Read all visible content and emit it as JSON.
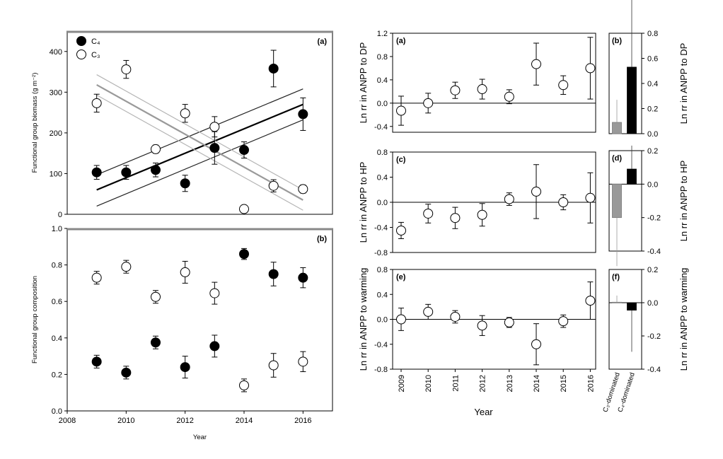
{
  "colors": {
    "filled": "#000000",
    "open": "#ffffff",
    "c3_bar": "#999999",
    "c4_bar": "#000000",
    "regression_c4": "#000000",
    "regression_c3": "#9a9a9a",
    "ci_band": "#444444"
  },
  "chart_data": [
    {
      "id": "left-a",
      "type": "scatter",
      "panel_label": "(a)",
      "ylabel": "Functional group biomass (g m⁻²)",
      "xlim": [
        2008,
        2017
      ],
      "ylim": [
        0,
        450
      ],
      "yticks": [
        "0",
        "100",
        "200",
        "300",
        "400"
      ],
      "legend": {
        "position": "top-left",
        "entries": [
          "C₄",
          "C₃"
        ]
      },
      "series": [
        {
          "name": "C₄",
          "marker": "filled",
          "x": [
            2009,
            2010,
            2011,
            2012,
            2013,
            2014,
            2015,
            2016
          ],
          "y": [
            103,
            103,
            109,
            76,
            163,
            158,
            358,
            246
          ],
          "err": [
            17,
            17,
            17,
            20,
            40,
            20,
            45,
            40
          ]
        },
        {
          "name": "C₃",
          "marker": "open",
          "x": [
            2009,
            2010,
            2011,
            2012,
            2013,
            2014,
            2015,
            2016
          ],
          "y": [
            273,
            356,
            160,
            248,
            215,
            13,
            70,
            62
          ],
          "err": [
            22,
            22,
            10,
            22,
            25,
            8,
            15,
            10
          ]
        }
      ],
      "regressions": [
        {
          "series": "C₄",
          "x": [
            2009,
            2016
          ],
          "y": [
            60,
            270
          ],
          "lower": [
            20,
            232
          ],
          "upper": [
            97,
            308
          ]
        },
        {
          "series": "C₃",
          "x": [
            2009,
            2016
          ],
          "y": [
            318,
            35
          ],
          "lower": [
            293,
            10
          ],
          "upper": [
            343,
            60
          ]
        }
      ]
    },
    {
      "id": "left-b",
      "type": "scatter",
      "panel_label": "(b)",
      "xlabel": "Year",
      "ylabel": "Functional group composition",
      "xlim": [
        2008,
        2017
      ],
      "ylim": [
        0.0,
        1.0
      ],
      "xticks": [
        "2008",
        "2010",
        "2012",
        "2014",
        "2016"
      ],
      "yticks": [
        "0.0",
        "0.2",
        "0.4",
        "0.6",
        "0.8",
        "1.0"
      ],
      "series": [
        {
          "name": "C₄",
          "marker": "filled",
          "x": [
            2009,
            2010,
            2011,
            2012,
            2013,
            2014,
            2015,
            2016
          ],
          "y": [
            0.27,
            0.21,
            0.375,
            0.24,
            0.355,
            0.86,
            0.75,
            0.73
          ],
          "err": [
            0.035,
            0.035,
            0.035,
            0.06,
            0.06,
            0.03,
            0.065,
            0.055
          ]
        },
        {
          "name": "C₃",
          "marker": "open",
          "x": [
            2009,
            2010,
            2011,
            2012,
            2013,
            2014,
            2015,
            2016
          ],
          "y": [
            0.73,
            0.79,
            0.625,
            0.76,
            0.645,
            0.14,
            0.25,
            0.27
          ],
          "err": [
            0.035,
            0.035,
            0.035,
            0.06,
            0.06,
            0.035,
            0.065,
            0.055
          ]
        }
      ]
    },
    {
      "id": "right-a",
      "type": "scatter",
      "panel_label": "(a)",
      "ylabel": "Ln rr in ANPP to DP",
      "ylim": [
        -0.5,
        1.2
      ],
      "yticks": [
        "-0.4",
        "0.0",
        "0.4",
        "0.8",
        "1.2"
      ],
      "x": [
        2009,
        2010,
        2011,
        2012,
        2013,
        2014,
        2015,
        2016
      ],
      "y": [
        -0.13,
        0.0,
        0.22,
        0.24,
        0.11,
        0.67,
        0.31,
        0.6
      ],
      "err": [
        0.25,
        0.17,
        0.14,
        0.17,
        0.12,
        0.36,
        0.16,
        0.53
      ]
    },
    {
      "id": "right-b",
      "type": "bar",
      "panel_label": "(b)",
      "ylabel": "Ln rr in ANPP to DP",
      "ylim": [
        0.0,
        0.8
      ],
      "yticks": [
        "0.0",
        "0.2",
        "0.4",
        "0.6",
        "0.8"
      ],
      "categories": [
        "C₃-dominated",
        "C₄-dominated"
      ],
      "values": [
        0.09,
        0.53
      ],
      "err": [
        0.18,
        0.63
      ]
    },
    {
      "id": "right-c",
      "type": "scatter",
      "panel_label": "(c)",
      "ylabel": "Ln rr in ANPP to HP",
      "ylim": [
        -0.8,
        0.8
      ],
      "yticks": [
        "-0.8",
        "-0.4",
        "0.0",
        "0.4",
        "0.8"
      ],
      "x": [
        2009,
        2010,
        2011,
        2012,
        2013,
        2014,
        2015,
        2016
      ],
      "y": [
        -0.45,
        -0.18,
        -0.25,
        -0.2,
        0.05,
        0.17,
        0.0,
        0.07
      ],
      "err": [
        0.13,
        0.15,
        0.17,
        0.18,
        0.1,
        0.43,
        0.12,
        0.4
      ]
    },
    {
      "id": "right-d",
      "type": "bar",
      "panel_label": "(d)",
      "ylabel": "Ln rr in ANPP to HP",
      "ylim": [
        -0.4,
        0.2
      ],
      "yticks": [
        "-0.4",
        "-0.2",
        "0.0",
        "0.2"
      ],
      "categories": [
        "C₃-dominated",
        "C₄-dominated"
      ],
      "values": [
        -0.2,
        0.09
      ],
      "err": [
        0.29,
        0.14
      ]
    },
    {
      "id": "right-e",
      "type": "scatter",
      "panel_label": "(e)",
      "ylabel": "Ln rr in ANPP to warming",
      "xlabel": "Year",
      "ylim": [
        -0.8,
        0.8
      ],
      "yticks": [
        "-0.8",
        "-0.4",
        "0.0",
        "0.4",
        "0.8"
      ],
      "xticks": [
        "2009",
        "2010",
        "2011",
        "2012",
        "2013",
        "2014",
        "2015",
        "2016"
      ],
      "x": [
        2009,
        2010,
        2011,
        2012,
        2013,
        2014,
        2015,
        2016
      ],
      "y": [
        0.0,
        0.12,
        0.04,
        -0.1,
        -0.05,
        -0.4,
        -0.03,
        0.3
      ],
      "err": [
        0.18,
        0.12,
        0.1,
        0.16,
        0.08,
        0.33,
        0.1,
        0.3
      ]
    },
    {
      "id": "right-f",
      "type": "bar",
      "panel_label": "(f)",
      "ylabel": "Ln rr in ANPP to warming",
      "ylim": [
        -0.4,
        0.2
      ],
      "yticks": [
        "-0.4",
        "-0.2",
        "0.0",
        "0.2"
      ],
      "xticks": [
        "C₃-dominated",
        "C₄-dominated"
      ],
      "categories": [
        "C₃-dominated",
        "C₄-dominated"
      ],
      "values": [
        0.003,
        -0.045
      ],
      "err": [
        0.04,
        0.25
      ]
    }
  ]
}
